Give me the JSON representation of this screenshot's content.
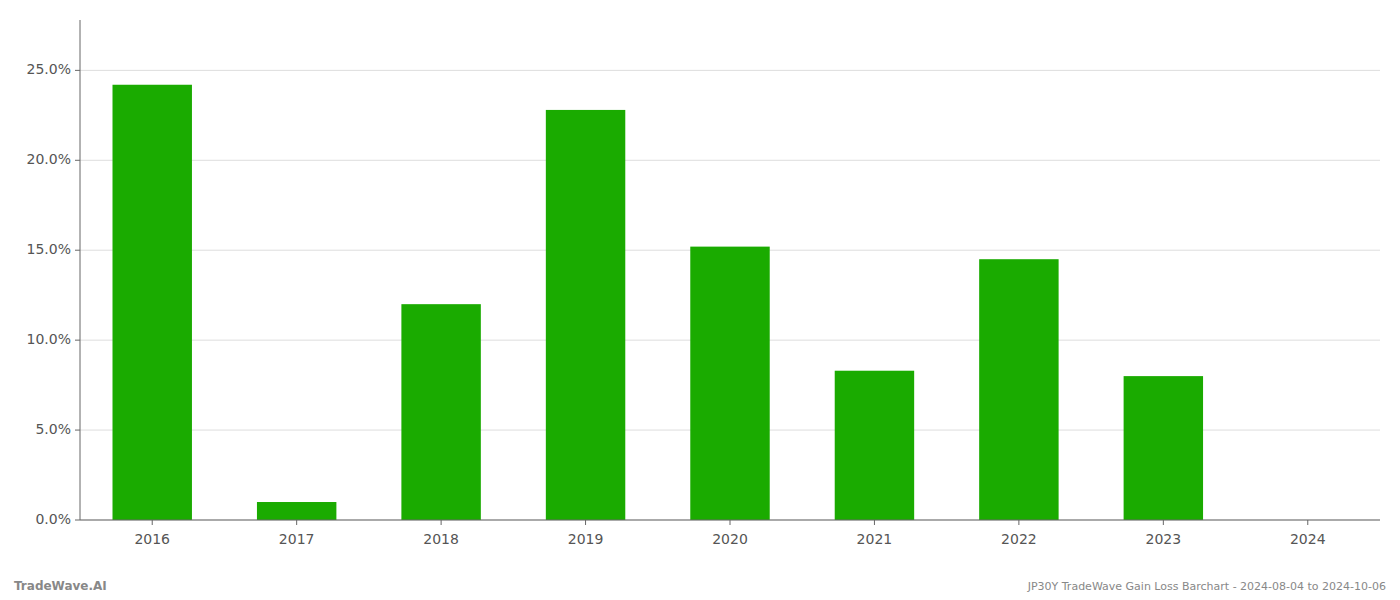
{
  "chart_data": {
    "type": "bar",
    "categories": [
      "2016",
      "2017",
      "2018",
      "2019",
      "2020",
      "2021",
      "2022",
      "2023",
      "2024"
    ],
    "values": [
      0.242,
      0.01,
      0.12,
      0.228,
      0.152,
      0.083,
      0.145,
      0.08,
      0.0
    ],
    "color": "#1aab00",
    "ylim": [
      0,
      0.278
    ],
    "yticks": [
      {
        "value": 0.0,
        "label": "0.0%"
      },
      {
        "value": 0.05,
        "label": "5.0%"
      },
      {
        "value": 0.1,
        "label": "10.0%"
      },
      {
        "value": 0.15,
        "label": "15.0%"
      },
      {
        "value": 0.2,
        "label": "20.0%"
      },
      {
        "value": 0.25,
        "label": "25.0%"
      }
    ],
    "grid": true,
    "annotations": [
      "TradeWave.AI",
      "JP30Y TradeWave Gain Loss Barchart - 2024-08-04 to 2024-10-06"
    ]
  }
}
